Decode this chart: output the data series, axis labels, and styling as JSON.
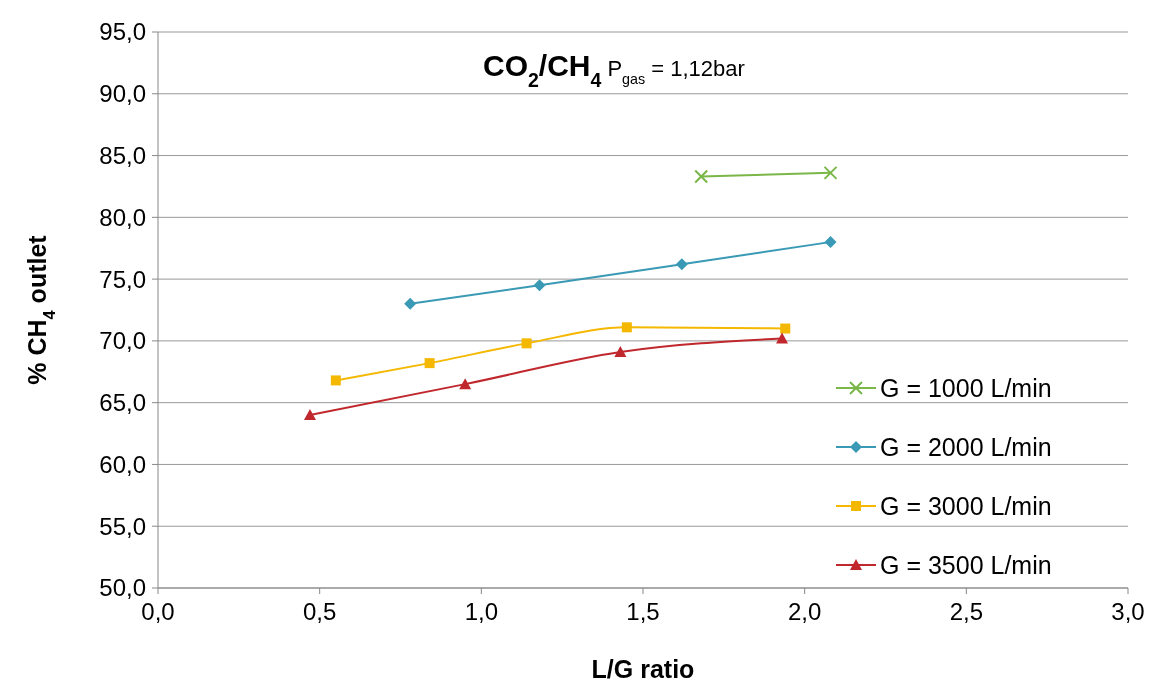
{
  "chart_data": {
    "type": "line",
    "title": "CO$_{2}$/CH$_{4}$",
    "subtitle": "P$_{gas}$ = 1,12bar",
    "xlabel": "L/G ratio",
    "ylabel": "% CH$_{4}$ outlet",
    "xlim": [
      0,
      3
    ],
    "xticks": [
      {
        "value": 0,
        "label": "0,0"
      },
      {
        "value": 0.5,
        "label": "0,5"
      },
      {
        "value": 1,
        "label": "1,0"
      },
      {
        "value": 1.5,
        "label": "1,5"
      },
      {
        "value": 2,
        "label": "2,0"
      },
      {
        "value": 2.5,
        "label": "2,5"
      },
      {
        "value": 3,
        "label": "3,0"
      }
    ],
    "ylim": [
      50,
      95
    ],
    "yticks": [
      {
        "value": 50,
        "label": "50,0"
      },
      {
        "value": 55,
        "label": "55,0"
      },
      {
        "value": 60,
        "label": "60,0"
      },
      {
        "value": 65,
        "label": "65,0"
      },
      {
        "value": 70,
        "label": "70,0"
      },
      {
        "value": 75,
        "label": "75,0"
      },
      {
        "value": 80,
        "label": "80,0"
      },
      {
        "value": 85,
        "label": "85,0"
      },
      {
        "value": 90,
        "label": "90,0"
      },
      {
        "value": 95,
        "label": "95,0"
      }
    ],
    "grid": "y",
    "legend": "right",
    "series": [
      {
        "name": "G = 1000 L/min",
        "color": "#7ab648",
        "marker": "cross",
        "x": [
          1.68,
          2.08
        ],
        "values": [
          83.3,
          83.6
        ]
      },
      {
        "name": "G = 2000 L/min",
        "color": "#3a9ab5",
        "marker": "diamond",
        "x": [
          0.78,
          1.18,
          1.62,
          2.08
        ],
        "values": [
          73.0,
          74.5,
          76.2,
          78.0
        ]
      },
      {
        "name": "G = 3000 L/min",
        "color": "#f5b800",
        "marker": "square",
        "x": [
          0.55,
          0.84,
          1.14,
          1.45,
          1.94
        ],
        "values": [
          66.8,
          68.2,
          69.8,
          71.1,
          71.0
        ]
      },
      {
        "name": "G = 3500 L/min",
        "color": "#c0282d",
        "marker": "triangle",
        "x": [
          0.47,
          0.95,
          1.43,
          1.93
        ],
        "values": [
          64.0,
          66.5,
          69.1,
          70.2
        ]
      }
    ]
  }
}
